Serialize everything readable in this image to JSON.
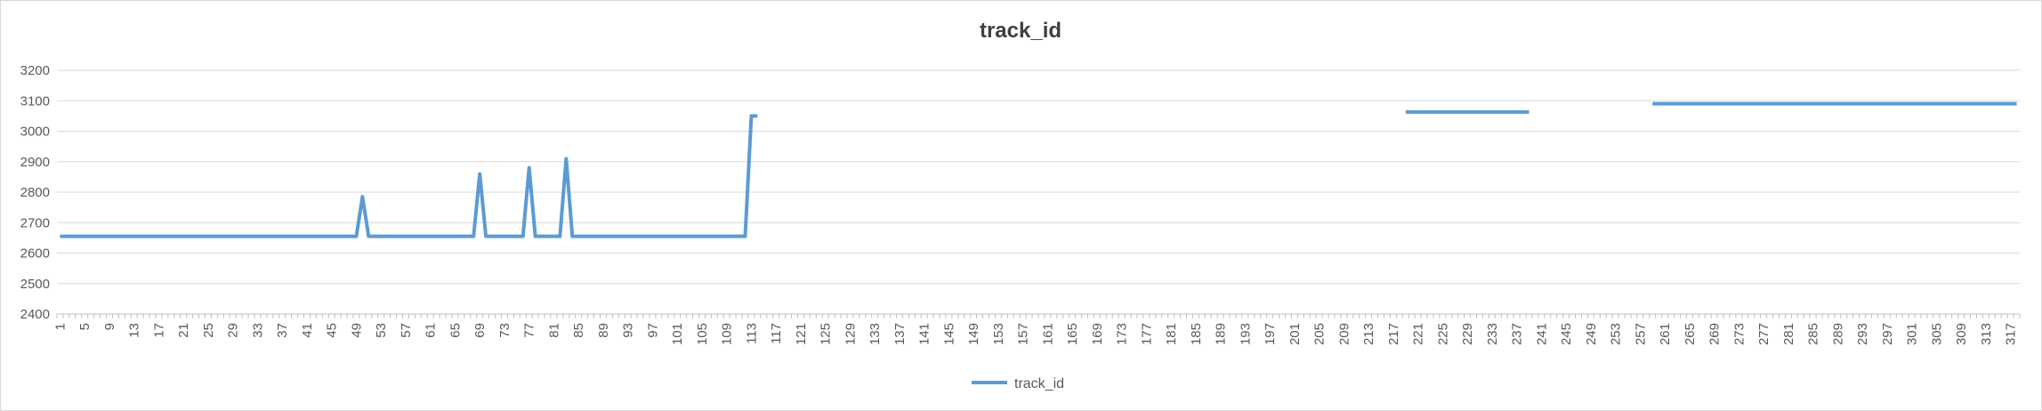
{
  "chart_data": {
    "type": "line",
    "title": "track_id",
    "xlabel": "",
    "ylabel": "",
    "ylim": [
      2400,
      3200
    ],
    "y_ticks": [
      2400,
      2500,
      2600,
      2700,
      2800,
      2900,
      3000,
      3100,
      3200
    ],
    "x_range": [
      1,
      318
    ],
    "x_tick_step": 4,
    "grid": "horizontal",
    "legend_position": "bottom",
    "color": "#5b9bd5",
    "series": [
      {
        "name": "track_id",
        "segments": [
          [
            [
              1,
              2655
            ],
            [
              49,
              2655
            ],
            [
              50,
              2785
            ],
            [
              51,
              2655
            ],
            [
              68,
              2655
            ],
            [
              69,
              2860
            ],
            [
              70,
              2655
            ],
            [
              76,
              2655
            ],
            [
              77,
              2880
            ],
            [
              78,
              2655
            ],
            [
              82,
              2655
            ],
            [
              83,
              2910
            ],
            [
              84,
              2655
            ],
            [
              112,
              2655
            ],
            [
              113,
              3050
            ],
            [
              114,
              3050
            ]
          ],
          [
            [
              219,
              3063
            ],
            [
              239,
              3063
            ]
          ],
          [
            [
              259,
              3090
            ],
            [
              318,
              3090
            ]
          ]
        ]
      }
    ]
  }
}
